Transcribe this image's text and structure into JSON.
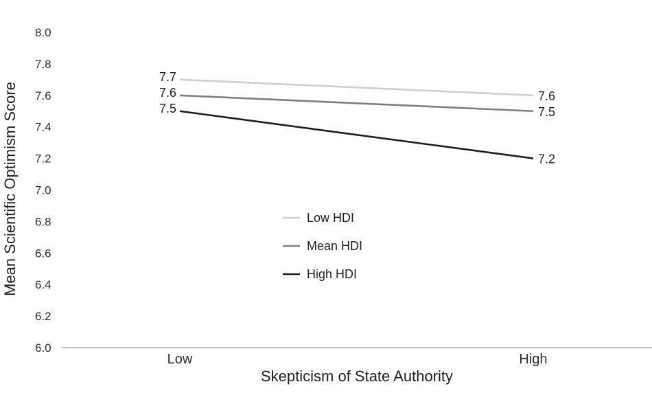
{
  "chart_data": {
    "type": "line",
    "title": "",
    "xlabel": "Skepticism of State Authority",
    "ylabel": "Mean Scientific Optimism Score",
    "categories": [
      "Low",
      "High"
    ],
    "ylim": [
      6.0,
      8.0
    ],
    "yticks": [
      "6.0",
      "6.2",
      "6.4",
      "6.6",
      "6.8",
      "7.0",
      "7.2",
      "7.4",
      "7.6",
      "7.8",
      "8.0"
    ],
    "grid": false,
    "legend_position": "center",
    "series": [
      {
        "name": "Low HDI",
        "values": [
          7.7,
          7.6
        ],
        "labels": [
          "7.7",
          "7.6"
        ],
        "color": "#cfcfcf"
      },
      {
        "name": "Mean HDI",
        "values": [
          7.6,
          7.5
        ],
        "labels": [
          "7.6",
          "7.5"
        ],
        "color": "#7f7f7f"
      },
      {
        "name": "High HDI",
        "values": [
          7.5,
          7.2
        ],
        "labels": [
          "7.5",
          "7.2"
        ],
        "color": "#1c1c1c"
      }
    ]
  }
}
